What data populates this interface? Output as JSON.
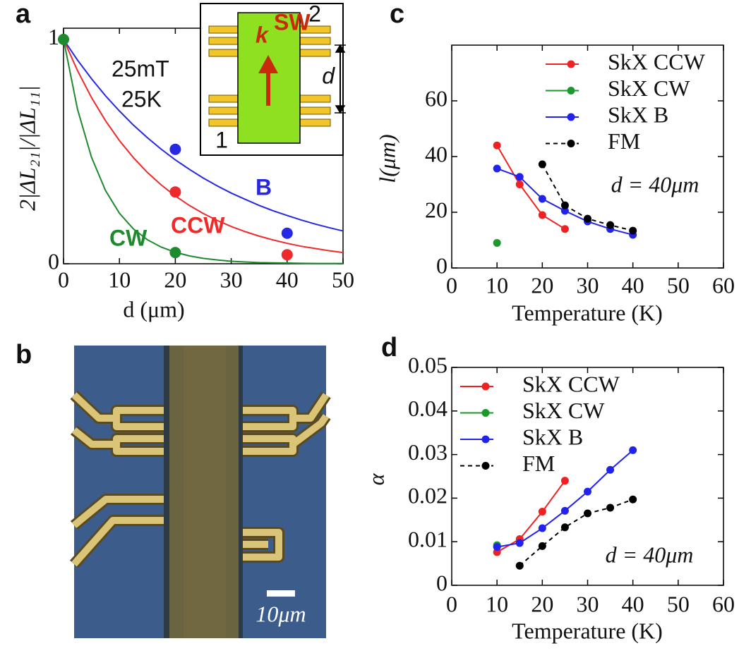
{
  "chart_data": [
    {
      "type": "line",
      "panel": "a",
      "x_label": "d (μm)",
      "y_label": "2|ΔL₂₁|/|ΔL₁₁|",
      "xlim": [
        0,
        50
      ],
      "xticks": [
        0,
        10,
        20,
        30,
        40,
        50
      ],
      "ylim": [
        0,
        1.05
      ],
      "yticks": [
        0,
        1
      ],
      "annotations": [
        "25mT",
        "25K"
      ],
      "inset": {
        "wave_vector": "k",
        "wave_vector_sup": "SW",
        "port_labels": [
          "1",
          "2"
        ],
        "distance": "d"
      },
      "series": [
        {
          "name": "B",
          "color": "#2727e6",
          "x": [
            0,
            2.5,
            5,
            7.5,
            10,
            12.5,
            15,
            17.5,
            20,
            22.5,
            25,
            27.5,
            30,
            32.5,
            35,
            37.5,
            40,
            42.5,
            45,
            47.5,
            50
          ],
          "values": [
            1,
            0.908,
            0.825,
            0.749,
            0.681,
            0.618,
            0.562,
            0.51,
            0.463,
            0.421,
            0.382,
            0.347,
            0.315,
            0.287,
            0.26,
            0.236,
            0.215,
            0.195,
            0.177,
            0.161,
            0.146
          ],
          "marker_x": [
            20,
            40
          ],
          "marker_values": [
            0.51,
            0.136
          ]
        },
        {
          "name": "CCW",
          "color": "#ee2a2a",
          "x": [
            0,
            2.5,
            5,
            7.5,
            10,
            12.5,
            15,
            17.5,
            20,
            22.5,
            25,
            27.5,
            30,
            32.5,
            35,
            37.5,
            40,
            42.5,
            45,
            47.5,
            50
          ],
          "values": [
            1,
            0.861,
            0.741,
            0.638,
            0.549,
            0.473,
            0.407,
            0.351,
            0.302,
            0.26,
            0.224,
            0.193,
            0.166,
            0.143,
            0.123,
            0.106,
            0.091,
            0.078,
            0.068,
            0.058,
            0.05
          ],
          "marker_x": [
            20,
            40
          ],
          "marker_values": [
            0.32,
            0.04
          ]
        },
        {
          "name": "CW",
          "color": "#1e8a2e",
          "x": [
            0,
            2.5,
            5,
            7.5,
            10,
            12.5,
            15,
            17.5,
            20,
            22.5,
            25,
            27.5,
            30,
            32.5,
            35,
            37.5,
            40,
            42.5,
            45,
            47.5,
            50
          ],
          "values": [
            1,
            0.689,
            0.475,
            0.327,
            0.225,
            0.155,
            0.107,
            0.074,
            0.051,
            0.035,
            0.024,
            0.017,
            0.011,
            0.008,
            0.005,
            0.004,
            0.003,
            0.002,
            0.001,
            0.001,
            0.001
          ],
          "marker_x": [
            0,
            20
          ],
          "marker_values": [
            1,
            0.05
          ]
        }
      ]
    },
    {
      "type": "line",
      "panel": "c",
      "x_label": "Temperature (K)",
      "y_label": "l(μm)",
      "xlim": [
        0,
        60
      ],
      "xticks": [
        0,
        10,
        20,
        30,
        40,
        50,
        60
      ],
      "ylim": [
        0,
        80
      ],
      "yticks": [
        0,
        20,
        40,
        60
      ],
      "legend": "upper right",
      "annotation": "d = 40μm",
      "series": [
        {
          "name": "SkX CCW",
          "color": "#ee2222",
          "linestyle": "solid",
          "x": [
            10,
            15,
            20,
            25
          ],
          "values": [
            44,
            30,
            19,
            14
          ]
        },
        {
          "name": "SkX CW",
          "color": "#1a9a2a",
          "linestyle": "solid",
          "x": [
            10
          ],
          "values": [
            9
          ]
        },
        {
          "name": "SkX B",
          "color": "#2222ee",
          "linestyle": "solid",
          "x": [
            10,
            15,
            20,
            25,
            30,
            35,
            40
          ],
          "values": [
            35.7,
            32.7,
            24.8,
            20.5,
            16.7,
            14,
            11.9
          ]
        },
        {
          "name": "FM",
          "color": "#000000",
          "linestyle": "dashed",
          "x": [
            20,
            25,
            30,
            35,
            40
          ],
          "values": [
            37.2,
            22.5,
            17.7,
            15.4,
            13.4
          ]
        }
      ]
    },
    {
      "type": "line",
      "panel": "d",
      "x_label": "Temperature (K)",
      "y_label": "α",
      "xlim": [
        0,
        60
      ],
      "xticks": [
        0,
        10,
        20,
        30,
        40,
        50,
        60
      ],
      "ylim": [
        0,
        0.05
      ],
      "yticks": [
        0,
        0.01,
        0.02,
        0.03,
        0.04,
        0.05
      ],
      "legend": "upper left",
      "annotation": "d = 40μm",
      "series": [
        {
          "name": "SkX CCW",
          "color": "#ee2222",
          "linestyle": "solid",
          "x": [
            10,
            15,
            20,
            25
          ],
          "values": [
            0.0076,
            0.0106,
            0.0169,
            0.024
          ]
        },
        {
          "name": "SkX CW",
          "color": "#1a9a2a",
          "linestyle": "solid",
          "x": [
            10
          ],
          "values": [
            0.0092
          ]
        },
        {
          "name": "SkX B",
          "color": "#2222ee",
          "linestyle": "solid",
          "x": [
            10,
            15,
            20,
            25,
            30,
            35,
            40
          ],
          "values": [
            0.0088,
            0.0097,
            0.0131,
            0.0171,
            0.0215,
            0.0265,
            0.031
          ]
        },
        {
          "name": "FM",
          "color": "#000000",
          "linestyle": "dashed",
          "x": [
            15,
            20,
            25,
            30,
            35,
            40
          ],
          "values": [
            0.0045,
            0.009,
            0.0133,
            0.0165,
            0.0178,
            0.0197
          ]
        }
      ]
    }
  ],
  "panel_b": {
    "panel": "b",
    "scale_label": "10μm"
  }
}
